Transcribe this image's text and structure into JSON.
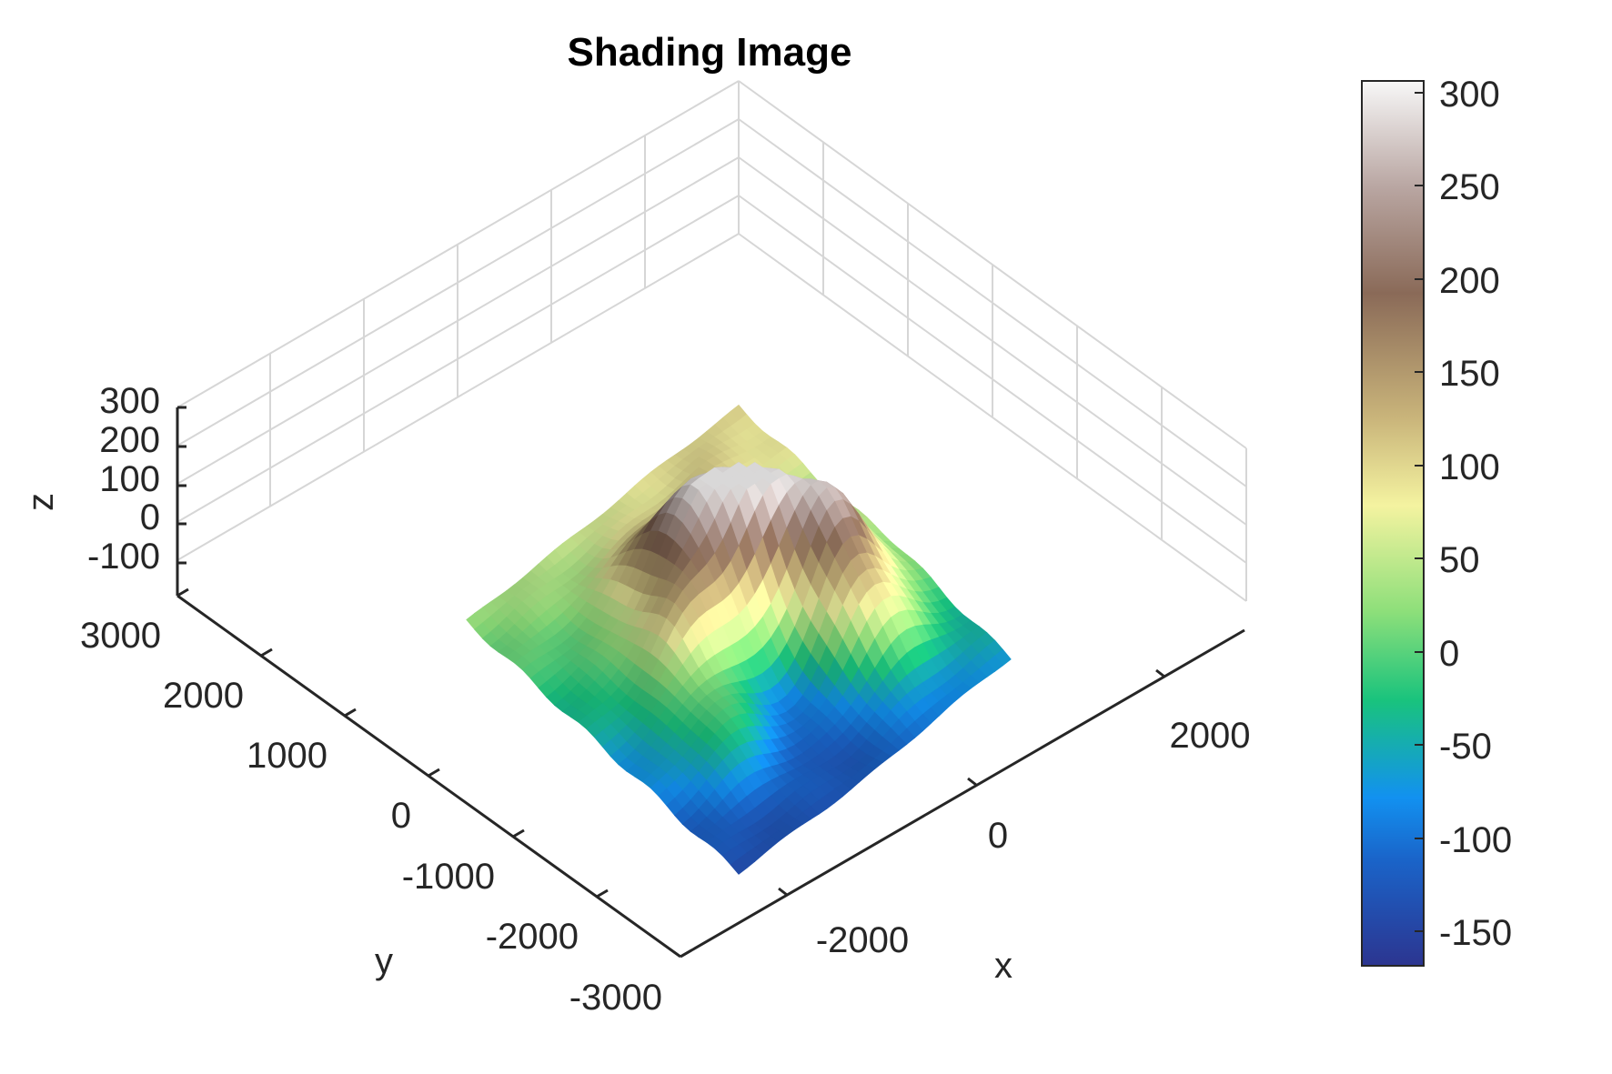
{
  "chart_data": {
    "type": "surface",
    "title": "Shading Image",
    "xlabel": "x",
    "ylabel": "y",
    "zlabel": "z",
    "xlim": [
      -3000,
      3000
    ],
    "ylim": [
      -3000,
      3000
    ],
    "zlim": [
      -170,
      300
    ],
    "x_ticks": [
      "-2000",
      "0",
      "2000"
    ],
    "y_ticks": [
      "-3000",
      "-2000",
      "-1000",
      "0",
      "1000",
      "2000",
      "3000"
    ],
    "z_ticks": [
      "-100",
      "0",
      "100",
      "200",
      "300"
    ],
    "grid": true,
    "colorbar": {
      "position": "right",
      "ticks": [
        "-150",
        "-100",
        "-50",
        "0",
        "50",
        "100",
        "150",
        "200",
        "250",
        "300"
      ],
      "range": [
        -170,
        305
      ],
      "colors": [
        "#2c3590",
        "#1a64c9",
        "#1291f0",
        "#19c37d",
        "#8ddf7a",
        "#f4f3a0",
        "#c9b47a",
        "#8a6a58",
        "#b9a6a2",
        "#f7f7f7"
      ]
    },
    "peaks": [
      {
        "x": -600,
        "y": 700,
        "z": 280
      },
      {
        "x": 300,
        "y": 1600,
        "z": 240
      },
      {
        "x": 1400,
        "y": 1500,
        "z": 120
      },
      {
        "x": -1300,
        "y": -200,
        "z": 180
      },
      {
        "x": -200,
        "y": -900,
        "z": 130
      },
      {
        "x": 1200,
        "y": -1500,
        "z": 70
      },
      {
        "x": -1900,
        "y": 1400,
        "z": 60
      }
    ]
  }
}
